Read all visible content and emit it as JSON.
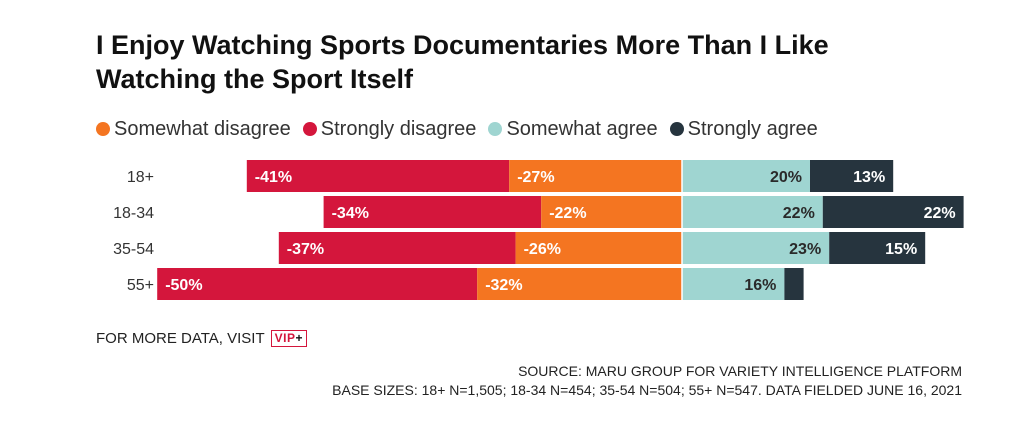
{
  "title": "I Enjoy Watching Sports Documentaries More Than I Like Watching the Sport Itself",
  "legend": [
    {
      "label": "Somewhat disagree",
      "color": "#f47521"
    },
    {
      "label": "Strongly disagree",
      "color": "#d4163c"
    },
    {
      "label": "Somewhat agree",
      "color": "#9fd5d1"
    },
    {
      "label": "Strongly agree",
      "color": "#26343e"
    }
  ],
  "chart_data": {
    "type": "bar",
    "orientation": "horizontal",
    "stacking": "diverging",
    "categories": [
      "18+",
      "18-34",
      "35-54",
      "55+"
    ],
    "series": [
      {
        "name": "Strongly disagree",
        "values": [
          -41,
          -34,
          -37,
          -50
        ],
        "labels": [
          "-41%",
          "-34%",
          "-37%",
          "-50%"
        ],
        "color": "#d4163c"
      },
      {
        "name": "Somewhat disagree",
        "values": [
          -27,
          -22,
          -26,
          -32
        ],
        "labels": [
          "-27%",
          "-22%",
          "-26%",
          "-32%"
        ],
        "color": "#f47521"
      },
      {
        "name": "Somewhat agree",
        "values": [
          20,
          22,
          23,
          16
        ],
        "labels": [
          "20%",
          "22%",
          "23%",
          "16%"
        ],
        "color": "#9fd5d1"
      },
      {
        "name": "Strongly agree",
        "values": [
          13,
          22,
          15,
          3
        ],
        "labels": [
          "13%",
          "22%",
          "15%",
          ""
        ],
        "color": "#26343e"
      }
    ]
  },
  "footer": {
    "visit_text": "FOR MORE DATA, VISIT",
    "vip_text": "VIP",
    "vip_plus": "+",
    "source": "SOURCE: MARU GROUP FOR VARIETY INTELLIGENCE PLATFORM",
    "base_sizes": "BASE SIZES: 18+ N=1,505; 18-34 N=454; 35-54 N=504; 55+ N=547. DATA FIELDED JUNE 16, 2021"
  }
}
